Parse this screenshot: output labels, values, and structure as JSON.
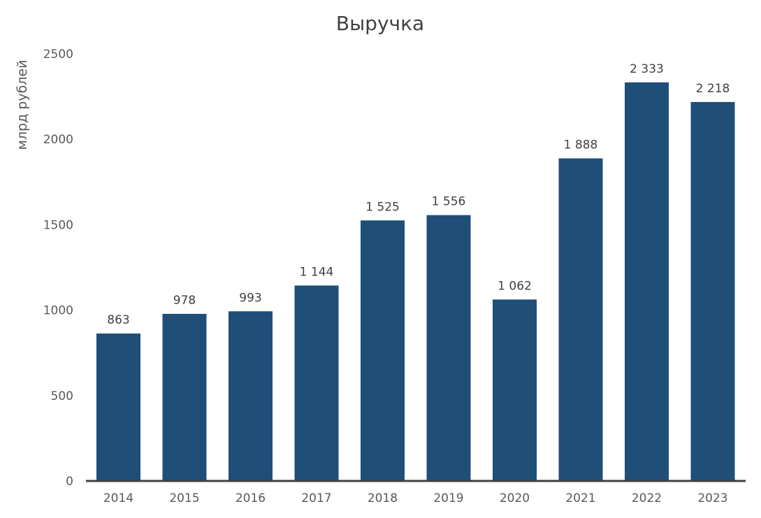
{
  "chart_data": {
    "type": "bar",
    "title": "Выручка",
    "xlabel": "",
    "ylabel": "млрд рублей",
    "categories": [
      "2014",
      "2015",
      "2016",
      "2017",
      "2018",
      "2019",
      "2020",
      "2021",
      "2022",
      "2023"
    ],
    "values": [
      863,
      978,
      993,
      1144,
      1525,
      1556,
      1062,
      1888,
      2333,
      2218
    ],
    "value_labels": [
      "863",
      "978",
      "993",
      "1 144",
      "1 525",
      "1 556",
      "1 062",
      "1 888",
      "2 333",
      "2 218"
    ],
    "ylim": [
      0,
      2500
    ],
    "yticks": [
      0,
      500,
      1000,
      1500,
      2000,
      2500
    ],
    "ytick_labels": [
      "0",
      "500",
      "1000",
      "1500",
      "2000",
      "2500"
    ],
    "grid": false,
    "legend": "none",
    "bar_color": "#1f4e79",
    "axis_color": "#404040"
  }
}
